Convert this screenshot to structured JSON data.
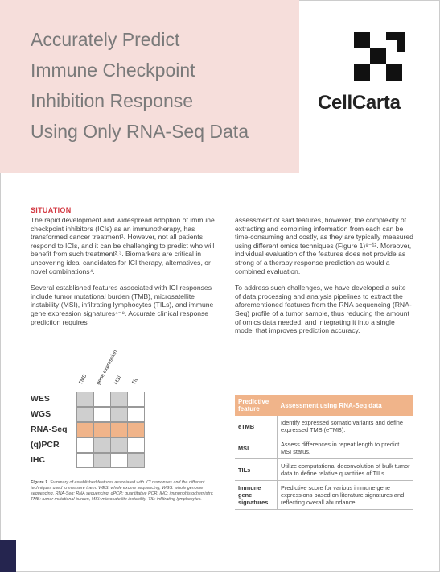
{
  "header": {
    "title": [
      "Accurately Predict",
      "Immune Checkpoint",
      "Inhibition Response",
      "Using Only RNA-Seq Data"
    ],
    "logo": "CellCarta"
  },
  "situation": {
    "heading": "SITUATION",
    "left": [
      "The rapid development and widespread adoption of immune checkpoint inhibitors (ICIs) as an immunotherapy, has transformed cancer treatment¹. However, not all patients respond to ICIs, and it can be challenging to predict who will benefit from such treatment²˒³. Biomarkers are critical in uncovering ideal candidates for ICI therapy, alternatives, or novel combinations⁴.",
      "Several established features associated with ICI responses include tumor mutational burden (TMB), microsatellite instability (MSI), infiltrating lymphocytes (TILs), and immune gene expression signatures⁴⁻⁸. Accurate clinical response prediction requires"
    ],
    "right": [
      "assessment of said features, however, the complexity of extracting and combining information from each can be time-consuming and costly, as they are typically measured using different omics techniques (Figure 1)⁹⁻¹². Moreover, individual evaluation of the features does not provide as strong of a therapy response prediction as would a combined evaluation.",
      "To address such challenges, we have developed a suite of data processing and analysis pipelines to extract the aforementioned features from the RNA sequencing (RNA-Seq) profile of a tumor sample, thus reducing the amount of omics data needed, and integrating it into a single model that improves prediction accuracy."
    ]
  },
  "figure": {
    "columns": [
      "TMB",
      "gene expression",
      "MSI",
      "TIL"
    ],
    "rows": [
      "WES",
      "WGS",
      "RNA-Seq",
      "(q)PCR",
      "IHC"
    ],
    "caption_label": "Figure 1.",
    "caption": " Summary of established features associated with ICI responses and the different techniques used to measure them. WES: whole exome sequencing, WGS: whole genome sequencing, RNA-Seq: RNA sequencing, qPCR: quantitative PCR, IHC: immunohistochemistry, TMB: tumor mutational burden, MSI: microsatellite instability, TIL: infiltrating lymphocytes."
  },
  "table": {
    "header": [
      "Predictive feature",
      "Assessment using RNA-Seq data"
    ],
    "rows": [
      [
        "eTMB",
        "Identify expressed somatic variants and define expressed TMB (eTMB)."
      ],
      [
        "MSI",
        "Assess differences in repeat length to predict MSI status."
      ],
      [
        "TILs",
        "Utilize computational deconvolution of bulk tumor data to define relative quantities of TILs."
      ],
      [
        "Immune gene signatures",
        "Predictive score for various immune gene expressions based on literature signatures and reflecting overall abundance."
      ]
    ]
  }
}
